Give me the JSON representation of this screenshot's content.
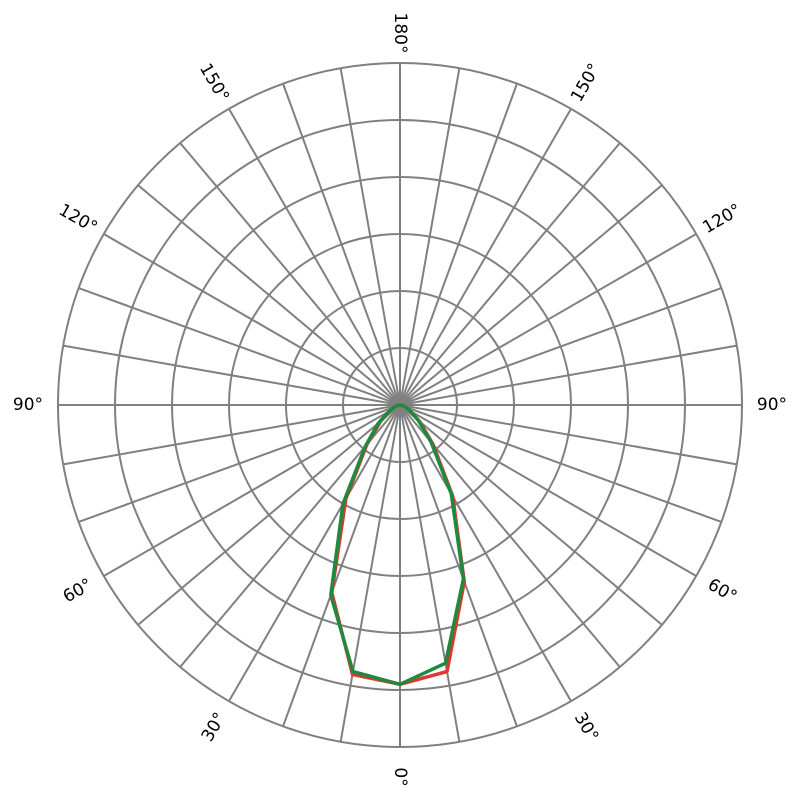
{
  "chart_data": {
    "type": "polar",
    "rlim": [
      0,
      6
    ],
    "rticks": [
      1,
      2,
      3,
      4,
      5,
      6
    ],
    "spoke_step": 10,
    "angle_ticks": [
      {
        "value": 0,
        "label": "0°"
      },
      {
        "value": 30,
        "label": "30°"
      },
      {
        "value": 60,
        "label": "60°"
      },
      {
        "value": 90,
        "label": "90°"
      },
      {
        "value": 120,
        "label": "120°"
      },
      {
        "value": 150,
        "label": "150°"
      },
      {
        "value": -30,
        "label": "30°"
      },
      {
        "value": -60,
        "label": "60°"
      },
      {
        "value": -90,
        "label": "90°"
      },
      {
        "value": -120,
        "label": "120°"
      },
      {
        "value": -150,
        "label": "150°"
      },
      {
        "value": -180,
        "label": "180°"
      }
    ],
    "x": [
      -90,
      -80,
      -70,
      -60,
      -50,
      -40,
      -30,
      -20,
      -10,
      0,
      10,
      20,
      30,
      40,
      50,
      60,
      70,
      80,
      90
    ],
    "series": [
      {
        "color": "#d63a32",
        "values": [
          0,
          0.05,
          0.1,
          0.2,
          0.45,
          0.9,
          1.9,
          3.5,
          4.8,
          4.9,
          4.75,
          3.3,
          1.85,
          0.9,
          0.45,
          0.2,
          0.1,
          0.05,
          0
        ]
      },
      {
        "color": "#1f8a3d",
        "values": [
          0,
          0.05,
          0.1,
          0.22,
          0.5,
          0.95,
          2.0,
          3.55,
          4.75,
          4.9,
          4.6,
          3.25,
          1.8,
          0.85,
          0.42,
          0.2,
          0.1,
          0.05,
          0
        ]
      }
    ]
  }
}
